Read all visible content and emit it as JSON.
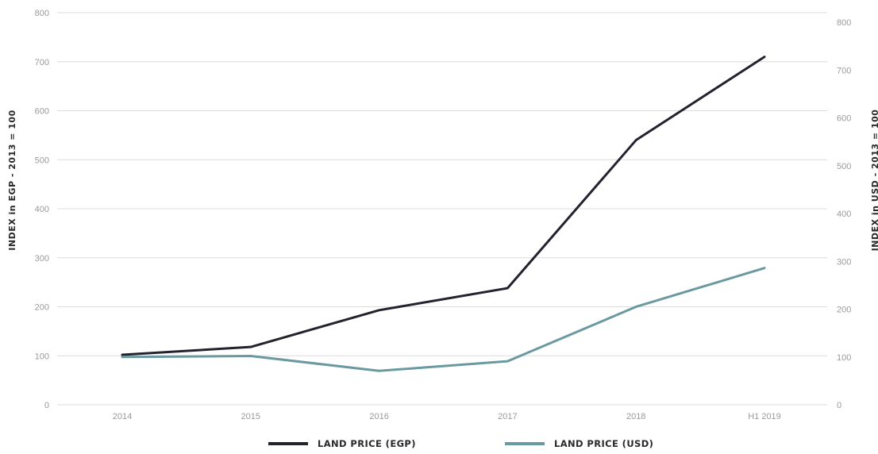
{
  "chart_data": {
    "type": "line",
    "categories": [
      "2014",
      "2015",
      "2016",
      "2017",
      "2018",
      "H1 2019"
    ],
    "series": [
      {
        "name": "LAND PRICE (EGP)",
        "axis": "left",
        "color": "#23232f",
        "values": [
          102,
          118,
          193,
          238,
          540,
          710
        ]
      },
      {
        "name": "LAND PRICE (USD)",
        "axis": "right",
        "color": "#6a9aa0",
        "values": [
          100,
          102,
          71,
          91,
          205,
          286
        ]
      }
    ],
    "ylabel_left": "INDEX in EGP - 2013 = 100",
    "ylabel_right": "INDEX in USD - 2013 = 100",
    "ylim_left": [
      0,
      800
    ],
    "ylim_right": [
      0,
      800
    ],
    "yticks_left": [
      "0",
      "100",
      "200",
      "300",
      "400",
      "500",
      "600",
      "700",
      "800"
    ],
    "yticks_right": [
      "0",
      "100",
      "200",
      "300",
      "400",
      "500",
      "600",
      "700",
      "800"
    ],
    "grid": true,
    "legend_position": "bottom-center"
  }
}
